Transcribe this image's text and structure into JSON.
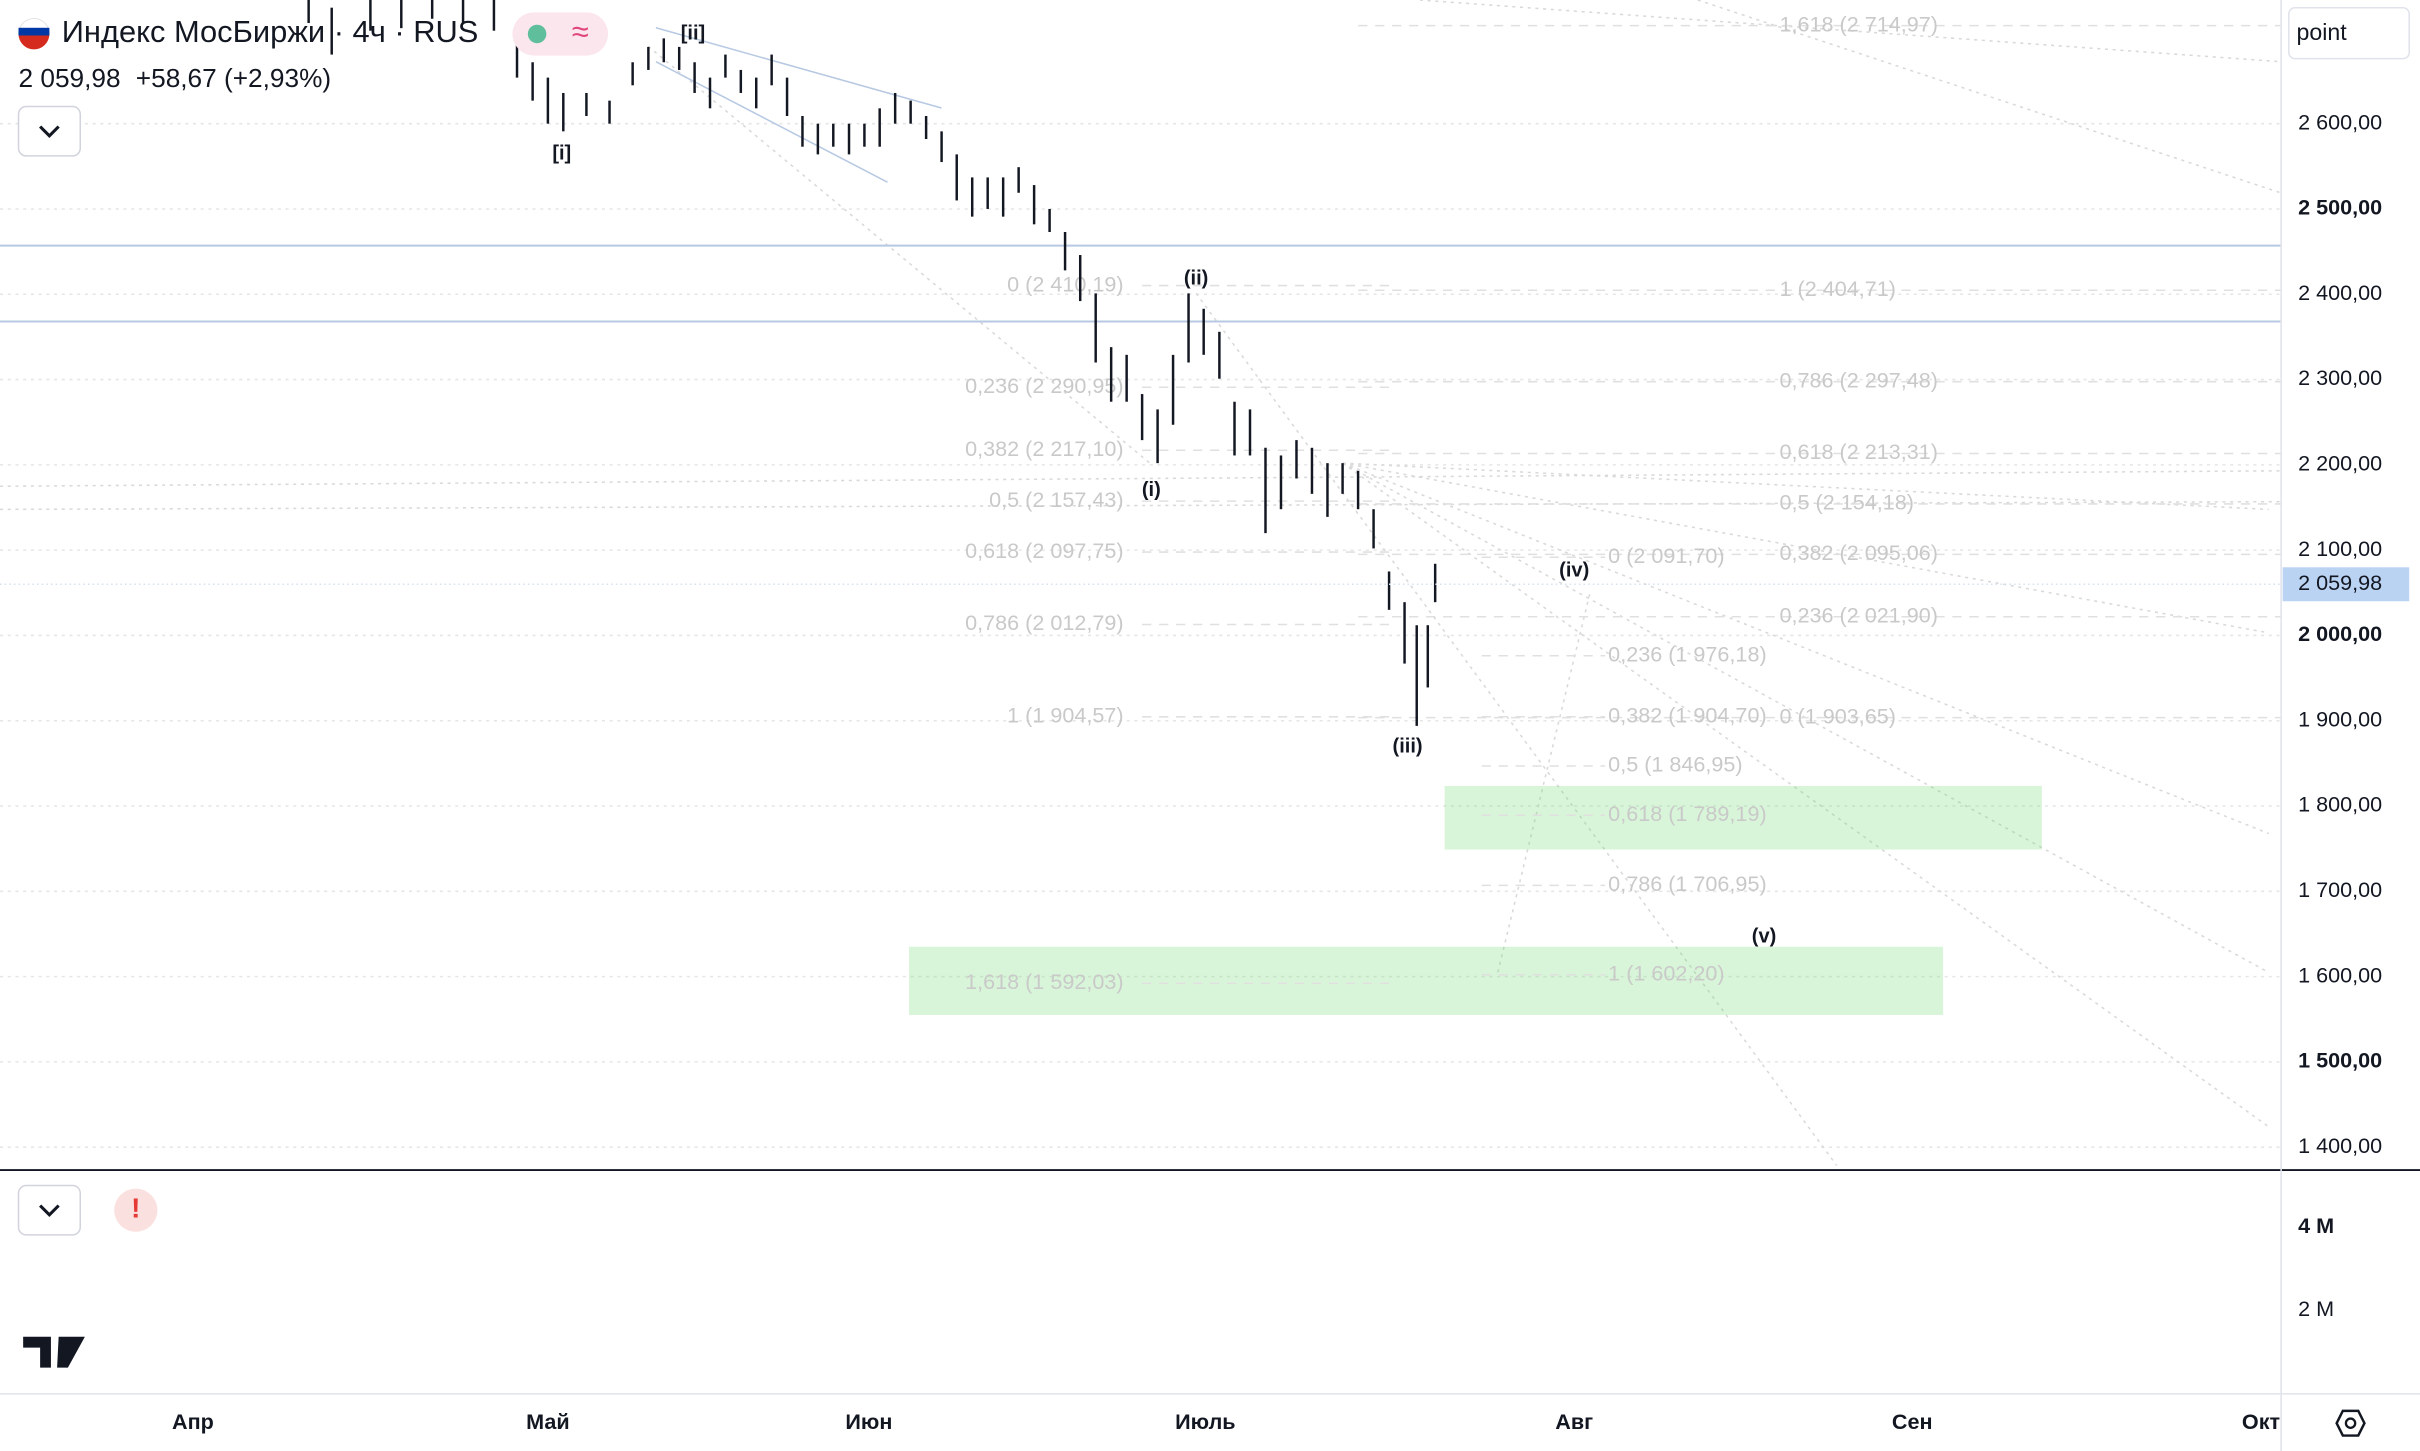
{
  "header": {
    "title": "Индекс МосБиржи · 4ч · RUS",
    "price": "2 059,98",
    "change": "+58,67 (+2,93%)",
    "unit_box": "point"
  },
  "chart_data": {
    "type": "ohlc",
    "yticks": [
      {
        "value": 2600,
        "label": "2 600,00"
      },
      {
        "value": 2500,
        "label": "2 500,00"
      },
      {
        "value": 2400,
        "label": "2 400,00"
      },
      {
        "value": 2300,
        "label": "2 300,00"
      },
      {
        "value": 2200,
        "label": "2 200,00"
      },
      {
        "value": 2100,
        "label": "2 100,00"
      },
      {
        "value": 2000,
        "label": "2 000,00"
      },
      {
        "value": 1900,
        "label": "1 900,00"
      },
      {
        "value": 1800,
        "label": "1 800,00"
      },
      {
        "value": 1700,
        "label": "1 700,00"
      },
      {
        "value": 1600,
        "label": "1 600,00"
      },
      {
        "value": 1500,
        "label": "1 500,00"
      },
      {
        "value": 1400,
        "label": "1 400,00"
      }
    ],
    "ylim": [
      1375,
      2745
    ],
    "xticks": [
      {
        "value": 4,
        "label": "Апр"
      },
      {
        "value": 5,
        "label": "Май"
      },
      {
        "value": 6,
        "label": "Июн"
      },
      {
        "value": 7,
        "label": "Июль"
      },
      {
        "value": 8,
        "label": "Авг"
      },
      {
        "value": 9,
        "label": "Сен"
      },
      {
        "value": 10,
        "label": "Окт"
      }
    ],
    "last_price": {
      "value": 2059.98,
      "label": "2 059,98"
    },
    "series": [
      {
        "name": "Индекс МосБиржи",
        "color": "#131722",
        "x": [
          4.326,
          4.391,
          4.5,
          4.587,
          4.674,
          4.761,
          4.848,
          4.913,
          4.957,
          5.0,
          5.048,
          5.12,
          5.192,
          5.264,
          5.313,
          5.361,
          5.409,
          5.457,
          5.505,
          5.553,
          5.601,
          5.649,
          5.697,
          5.745,
          5.793,
          5.841,
          5.889,
          5.938,
          5.986,
          6.032,
          6.078,
          6.124,
          6.17,
          6.216,
          6.261,
          6.307,
          6.353,
          6.399,
          6.445,
          6.491,
          6.537,
          6.583,
          6.628,
          6.674,
          6.72,
          6.766,
          6.812,
          6.858,
          6.904,
          6.95,
          6.995,
          7.038,
          7.079,
          7.121,
          7.163,
          7.205,
          7.247,
          7.289,
          7.331,
          7.372,
          7.414,
          7.456,
          7.498,
          7.54,
          7.573,
          7.603,
          7.623
        ],
        "high": [
          2745,
          2736,
          2745,
          2745,
          2745,
          2745,
          2745,
          2709,
          2672,
          2654,
          2636,
          2636,
          2627,
          2672,
          2690,
          2700,
          2690,
          2672,
          2654,
          2681,
          2663,
          2654,
          2681,
          2654,
          2609,
          2600,
          2600,
          2600,
          2600,
          2618,
          2636,
          2627,
          2609,
          2591,
          2564,
          2537,
          2537,
          2537,
          2549,
          2528,
          2500,
          2473,
          2446,
          2401,
          2338,
          2329,
          2283,
          2265,
          2329,
          2401,
          2383,
          2356,
          2274,
          2265,
          2220,
          2211,
          2229,
          2220,
          2202,
          2202,
          2193,
          2148,
          2075,
          2039,
          2012,
          2012,
          2084
        ],
        "low": [
          2718,
          2681,
          2709,
          2712,
          2723,
          2718,
          2709,
          2654,
          2627,
          2600,
          2591,
          2609,
          2600,
          2645,
          2663,
          2672,
          2663,
          2636,
          2618,
          2654,
          2636,
          2618,
          2645,
          2609,
          2573,
          2564,
          2573,
          2564,
          2573,
          2573,
          2600,
          2600,
          2582,
          2555,
          2510,
          2491,
          2500,
          2491,
          2519,
          2482,
          2473,
          2428,
          2392,
          2320,
          2274,
          2274,
          2229,
          2202,
          2247,
          2320,
          2329,
          2301,
          2211,
          2211,
          2120,
          2148,
          2184,
          2166,
          2139,
          2166,
          2148,
          2102,
          2030,
          1967,
          1894,
          1939,
          2039
        ]
      }
    ],
    "hlines": [
      2457,
      2368
    ],
    "zones": [
      [
        1823.5,
        1749
      ],
      [
        1635,
        1555
      ]
    ],
    "fib_left": [
      {
        "value": 2410.19,
        "label": "0 (2 410,19)"
      },
      {
        "value": 2290.95,
        "label": "0,236 (2 290,95)"
      },
      {
        "value": 2217.1,
        "label": "0,382 (2 217,10)"
      },
      {
        "value": 2157.43,
        "label": "0,5 (2 157,43)"
      },
      {
        "value": 2097.75,
        "label": "0,618 (2 097,75)"
      },
      {
        "value": 2012.79,
        "label": "0,786 (2 012,79)"
      },
      {
        "value": 1904.57,
        "label": "1 (1 904,57)"
      },
      {
        "value": 1592.03,
        "label": "1,618 (1 592,03)"
      }
    ],
    "fib_right": [
      {
        "value": 2714.97,
        "label": "1,618 (2 714,97)"
      },
      {
        "value": 2404.71,
        "label": "1 (2 404,71)"
      },
      {
        "value": 2297.48,
        "label": "0,786 (2 297,48)"
      },
      {
        "value": 2213.31,
        "label": "0,618 (2 213,31)"
      },
      {
        "value": 2154.18,
        "label": "0,5 (2 154,18)"
      },
      {
        "value": 2095.06,
        "label": "0,382 (2 095,06)"
      },
      {
        "value": 2021.9,
        "label": "0,236 (2 021,90)"
      },
      {
        "value": 1903.65,
        "label": "0 (1 903,65)"
      }
    ],
    "fib_ext": [
      {
        "value": 2091.7,
        "label": "0 (2 091,70)"
      },
      {
        "value": 1976.18,
        "label": "0,236 (1 976,18)"
      },
      {
        "value": 1904.7,
        "label": "0,382 (1 904,70)"
      },
      {
        "value": 1846.95,
        "label": "0,5 (1 846,95)"
      },
      {
        "value": 1789.19,
        "label": "0,618 (1 789,19)"
      },
      {
        "value": 1706.95,
        "label": "0,786 (1 706,95)"
      },
      {
        "value": 1602.2,
        "label": "1 (1 602,20)"
      }
    ],
    "waves": [
      "[i]",
      "[ii]",
      "(i)",
      "(ii)",
      "(iii)",
      "(iv)",
      "(v)"
    ],
    "volume_ticks": [
      "4 M",
      "2 M"
    ]
  }
}
